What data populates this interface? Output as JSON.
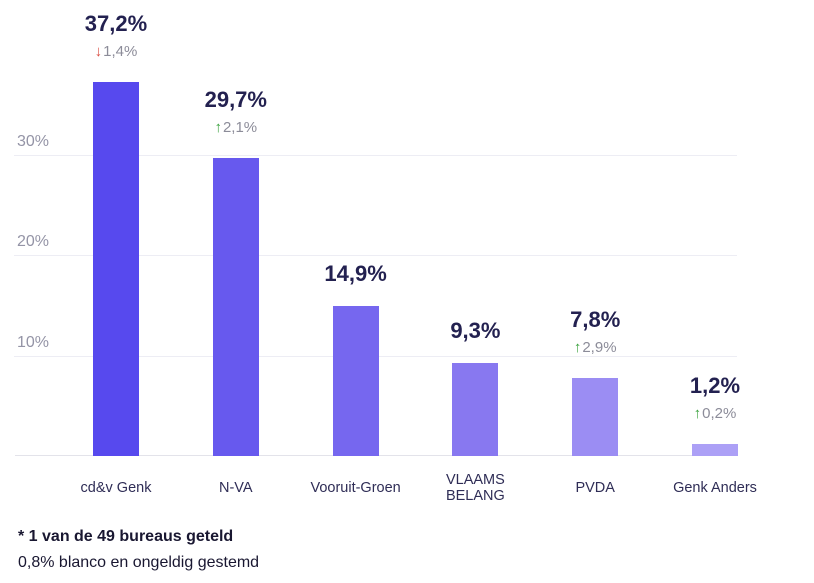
{
  "chart_data": {
    "type": "bar",
    "title": "",
    "xlabel": "",
    "ylabel": "",
    "ylim": [
      0,
      40
    ],
    "grid": true,
    "legend": false,
    "categories": [
      "cd&v Genk",
      "N-VA",
      "Vooruit-Groen",
      "VLAAMS BELANG",
      "PVDA",
      "Genk Anders"
    ],
    "values": [
      37.2,
      29.7,
      14.9,
      9.3,
      7.8,
      1.2
    ],
    "yticks": [
      {
        "value": 10,
        "label": "10%"
      },
      {
        "value": 20,
        "label": "20%"
      },
      {
        "value": 30,
        "label": "30%"
      }
    ],
    "bars": [
      {
        "category": "cd&v Genk",
        "category_display": "cd&v Genk",
        "value": 37.2,
        "value_label": "37,2%",
        "change": {
          "direction": "down",
          "label": "1,4%"
        },
        "color": "#5749ee"
      },
      {
        "category": "N-VA",
        "category_display": "N-VA",
        "value": 29.7,
        "value_label": "29,7%",
        "change": {
          "direction": "up",
          "label": "2,1%"
        },
        "color": "#6759ee"
      },
      {
        "category": "Vooruit-Groen",
        "category_display": "Vooruit-Groen",
        "value": 14.9,
        "value_label": "14,9%",
        "change": null,
        "color": "#7667ef"
      },
      {
        "category": "VLAAMS BELANG",
        "category_display": "VLAAMS\nBELANG",
        "value": 9.3,
        "value_label": "9,3%",
        "change": null,
        "color": "#8878f0"
      },
      {
        "category": "PVDA",
        "category_display": "PVDA",
        "value": 7.8,
        "value_label": "7,8%",
        "change": {
          "direction": "up",
          "label": "2,9%"
        },
        "color": "#9b8df3"
      },
      {
        "category": "Genk Anders",
        "category_display": "Genk Anders",
        "value": 1.2,
        "value_label": "1,2%",
        "change": {
          "direction": "up",
          "label": "0,2%"
        },
        "color": "#aca0f6"
      }
    ]
  },
  "colors": {
    "value_label": "#232150",
    "category_label": "#2f2d56",
    "ytick_label": "#9494a6",
    "gridline": "#ededf4",
    "baseline": "#e3e3ea",
    "change_text": "#8c8c99",
    "up_arrow": "#3aa23e",
    "down_arrow": "#db4f44"
  },
  "icons": {
    "up": "arrow-up-icon",
    "down": "arrow-down-icon"
  },
  "footnotes": {
    "line1": "* 1 van de 49 bureaus geteld",
    "line2": "0,8% blanco en ongeldig gestemd"
  }
}
